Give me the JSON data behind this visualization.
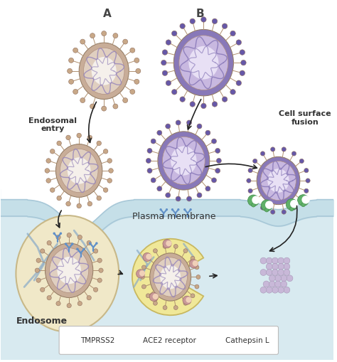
{
  "background_color": "#ffffff",
  "membrane_color": "#c5dfe8",
  "membrane_border_color": "#a8c8d8",
  "intracell_color": "#d8eaf0",
  "label_A": "A",
  "label_B": "B",
  "label_endosomal": "Endosomal\nentry",
  "label_cell_surface": "Cell surface\nfusion",
  "label_plasma": "Plasma membrane",
  "label_endosome": "Endosome",
  "virus_A_outer": "#c8ad98",
  "virus_A_mid": "#e0cfc0",
  "virus_A_inner": "#f5f0eb",
  "virus_A_spike": "#c8a888",
  "virus_A_helix": "#9988bb",
  "virus_B_outer": "#8878b8",
  "virus_B_mid": "#c8b8e0",
  "virus_B_inner": "#e8e0f5",
  "virus_B_spike": "#6658a8",
  "virus_B_helix": "#8878b8",
  "endosome_color": "#f0e8c8",
  "endosome_edge": "#c8b888",
  "endosome_vein": "#88aac8",
  "lysosome_color": "#f0e898",
  "lysosome_edge": "#c8b860",
  "cathepsin_color": "#c89898",
  "cathepsin_edge": "#a87878",
  "tmprss2_color": "#60b068",
  "ace2_color": "#6090c8",
  "rna_circle_color": "#c8b8d8",
  "rna_circle_edge": "#a898b8",
  "arrow_color": "#222222",
  "figsize": [
    4.74,
    5.1
  ],
  "dpi": 100
}
